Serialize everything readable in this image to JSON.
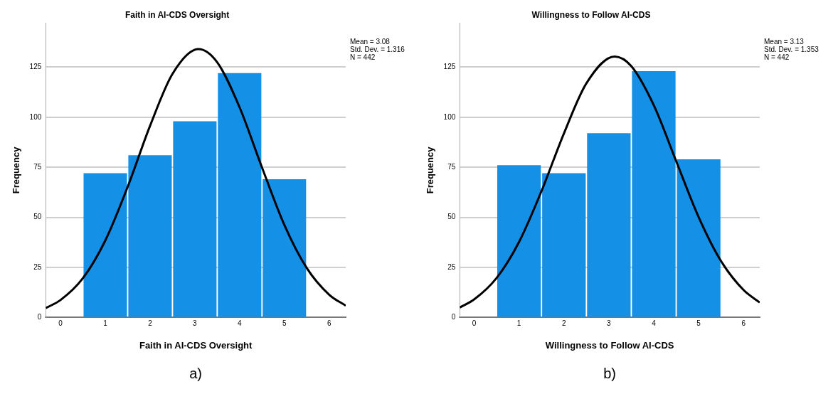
{
  "chart_data": [
    {
      "type": "histogram",
      "title": "Faith in AI-CDS Oversight",
      "xlabel": "Faith in AI-CDS Oversight",
      "ylabel": "Frequency",
      "bins": [
        0.5,
        1.5,
        2.5,
        3.5,
        4.5,
        5.5
      ],
      "xlim": [
        -0.33,
        6.37
      ],
      "ylim": [
        0,
        147
      ],
      "xticks": [
        0,
        1,
        2,
        3,
        4,
        5,
        6
      ],
      "yticks": [
        0,
        25,
        50,
        75,
        100,
        125
      ],
      "grid": "y",
      "legend": false,
      "marker": "none",
      "series": [
        {
          "color": "#1490e6",
          "values": [
            72,
            81,
            98,
            122,
            69
          ]
        },
        {
          "type": "line",
          "color": "#000000",
          "x": [
            -0.33,
            0,
            0.5,
            1,
            1.5,
            2,
            2.5,
            3.08,
            3.5,
            4,
            4.5,
            5,
            5.5,
            6,
            6.37
          ],
          "values": [
            4.7,
            8.7,
            19.6,
            38.4,
            65.2,
            95.7,
            121.6,
            134,
            127.4,
            104.9,
            74.9,
            46.2,
            24.7,
            11.4,
            5.9
          ]
        }
      ],
      "annotations": [
        "Mean = 3.08",
        "Std. Dev. = 1.316",
        "N = 442",
        "a)"
      ]
    },
    {
      "type": "histogram",
      "title": "Willingness to Follow AI-CDS",
      "xlabel": "Willingness to Follow AI-CDS",
      "ylabel": "Frequency",
      "bins": [
        0.5,
        1.5,
        2.5,
        3.5,
        4.5,
        5.5
      ],
      "xlim": [
        -0.32,
        6.36
      ],
      "ylim": [
        0,
        147
      ],
      "xticks": [
        0,
        1,
        2,
        3,
        4,
        5,
        6
      ],
      "yticks": [
        0,
        25,
        50,
        75,
        100,
        125
      ],
      "grid": "y",
      "legend": false,
      "marker": "none",
      "series": [
        {
          "color": "#1490e6",
          "values": [
            76,
            72,
            92,
            123,
            79
          ]
        },
        {
          "type": "line",
          "color": "#000000",
          "x": [
            -0.32,
            0,
            0.5,
            1,
            1.5,
            2,
            2.5,
            3.13,
            3.5,
            4,
            4.5,
            5,
            5.5,
            6,
            6.36
          ],
          "values": [
            5.0,
            9.0,
            19.7,
            37.7,
            63.1,
            91.9,
            116.9,
            130.3,
            125.5,
            106.0,
            78.0,
            50.1,
            28.1,
            13.7,
            7.5
          ]
        }
      ],
      "annotations": [
        "Mean = 3.13",
        "Std. Dev. = 1.353",
        "N = 442",
        "b)"
      ]
    }
  ]
}
